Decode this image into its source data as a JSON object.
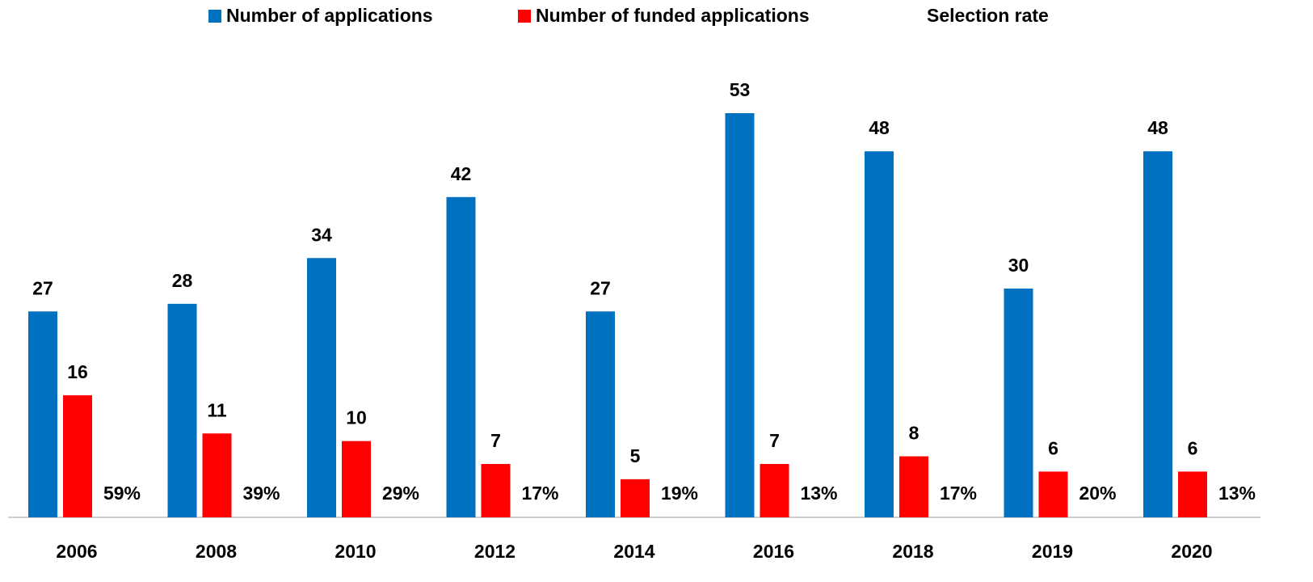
{
  "chart_data": {
    "type": "bar",
    "categories": [
      "2006",
      "2008",
      "2010",
      "2012",
      "2014",
      "2016",
      "2018",
      "2019",
      "2020"
    ],
    "series": [
      {
        "name": "Number of applications",
        "color": "#0070c0",
        "values": [
          27,
          28,
          34,
          42,
          27,
          53,
          48,
          30,
          48
        ]
      },
      {
        "name": "Number of funded applications",
        "color": "#ff0000",
        "values": [
          16,
          11,
          10,
          7,
          5,
          7,
          8,
          6,
          6
        ]
      },
      {
        "name": "Selection rate",
        "values": [
          59,
          39,
          29,
          17,
          19,
          13,
          17,
          20,
          13
        ],
        "value_labels": [
          "59%",
          "39%",
          "29%",
          "17%",
          "19%",
          "13%",
          "17%",
          "20%",
          "13%"
        ]
      }
    ],
    "legend": "top"
  }
}
